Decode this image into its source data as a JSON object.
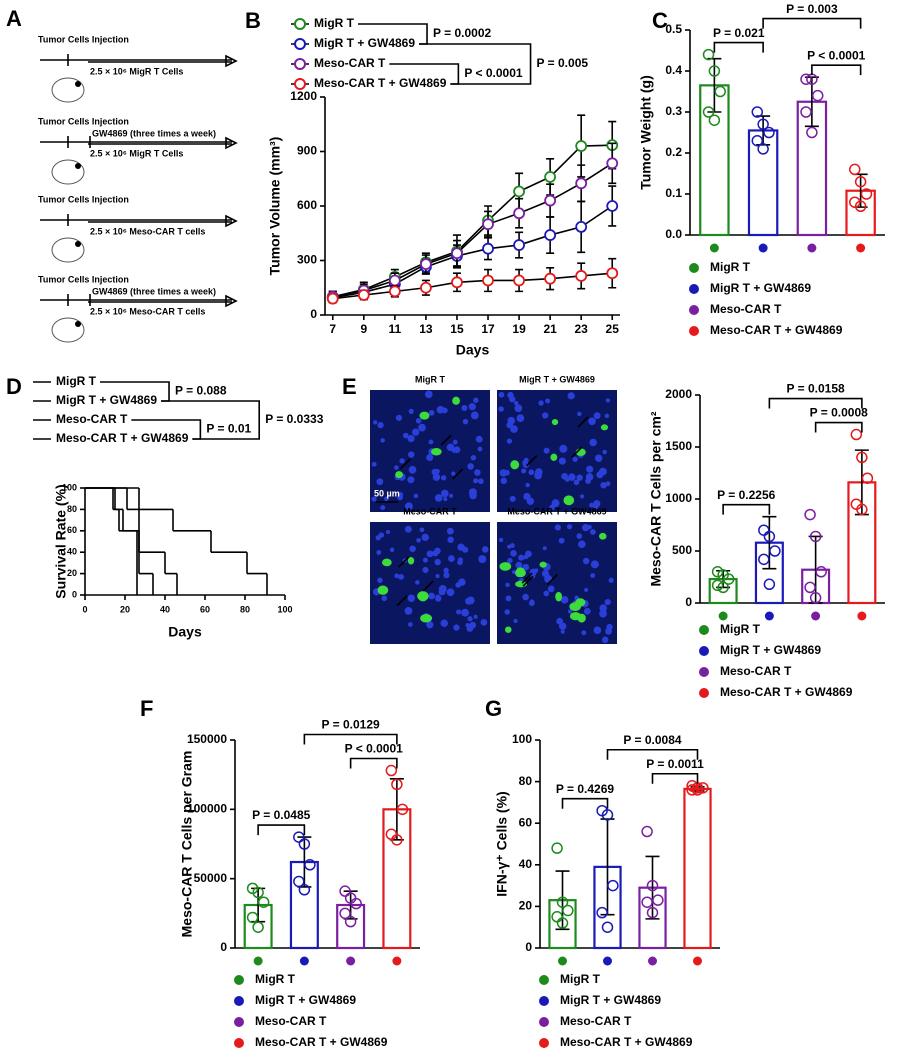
{
  "schematic": {
    "panel": "A",
    "rows": [
      {
        "injection": "Tumor Cells Injection",
        "cells": "2.5 × 10⁶ MigR T Cells"
      },
      {
        "injection": "Tumor Cells Injection",
        "treatment": "GW4869 (three times a week)",
        "cells": "2.5 × 10⁶ MigR T Cells"
      },
      {
        "injection": "Tumor Cells Injection",
        "cells": "2.5 × 10⁶ Meso-CAR T cells"
      },
      {
        "injection": "Tumor Cells Injection",
        "treatment": "GW4869 (three times a week)",
        "cells": "2.5 × 10⁶ Meso-CAR T cells"
      }
    ]
  },
  "micrographs": {
    "panels": [
      "MigR T",
      "MigR T + GW4869",
      "Meso-CAR T",
      "Meso-CAR T + GW4869"
    ],
    "scale_bar": "50 µm"
  },
  "chart_data": [
    {
      "type": "line",
      "panel": "B",
      "xlabel": "Days",
      "ylabel": "Tumor Volume (mm³)",
      "x": [
        7,
        9,
        11,
        13,
        15,
        17,
        19,
        21,
        23,
        25
      ],
      "xlim": [
        6.5,
        25.5
      ],
      "xticks": [
        7,
        9,
        11,
        13,
        15,
        17,
        19,
        21,
        23,
        25
      ],
      "ylim": [
        0,
        1200
      ],
      "yticks": [
        0,
        300,
        600,
        900,
        1200
      ],
      "series": [
        {
          "name": "MigR T",
          "color": "#1e8a1e",
          "values": [
            100,
            140,
            210,
            290,
            350,
            520,
            680,
            760,
            930,
            935
          ],
          "errors": [
            30,
            40,
            40,
            50,
            90,
            80,
            100,
            100,
            170,
            130
          ]
        },
        {
          "name": "MigR T + GW4869",
          "color": "#1a1ab8",
          "values": [
            95,
            125,
            170,
            265,
            325,
            365,
            385,
            440,
            485,
            600
          ],
          "errors": [
            25,
            30,
            40,
            40,
            60,
            60,
            70,
            100,
            140,
            110
          ]
        },
        {
          "name": "Meso-CAR T",
          "color": "#7b1fa2",
          "values": [
            100,
            135,
            190,
            280,
            340,
            500,
            560,
            630,
            725,
            835
          ],
          "errors": [
            30,
            35,
            40,
            50,
            70,
            70,
            80,
            90,
            100,
            110
          ]
        },
        {
          "name": "Meso-CAR T + GW4869",
          "color": "#e41a1c",
          "values": [
            90,
            110,
            130,
            150,
            180,
            190,
            190,
            200,
            215,
            230
          ],
          "errors": [
            20,
            25,
            30,
            40,
            50,
            60,
            60,
            60,
            70,
            80
          ]
        }
      ],
      "comparisons": [
        {
          "pair": [
            0,
            1
          ],
          "label": "P = 0.0002"
        },
        {
          "pair": [
            2,
            3
          ],
          "label": "P < 0.0001"
        },
        {
          "pair": [
            1,
            3
          ],
          "label": "P = 0.005"
        }
      ]
    },
    {
      "type": "bar",
      "panel": "C",
      "ylabel": "Tumor Weight (g)",
      "categories": [
        "MigR T",
        "MigR T + GW4869",
        "Meso-CAR T",
        "Meso-CAR T + GW4869"
      ],
      "colors": [
        "#1e8a1e",
        "#1a1ab8",
        "#7b1fa2",
        "#e41a1c"
      ],
      "values": [
        0.365,
        0.255,
        0.325,
        0.108
      ],
      "errors": [
        0.065,
        0.035,
        0.06,
        0.04
      ],
      "points": [
        [
          0.44,
          0.4,
          0.35,
          0.3,
          0.28
        ],
        [
          0.3,
          0.27,
          0.25,
          0.23,
          0.21
        ],
        [
          0.38,
          0.38,
          0.34,
          0.3,
          0.25
        ],
        [
          0.16,
          0.13,
          0.1,
          0.08,
          0.07
        ]
      ],
      "ylim": [
        0,
        0.5
      ],
      "yticks": [
        {
          "value": 0,
          "label": "0.0"
        },
        0.1,
        0.2,
        0.3,
        0.4,
        0.5
      ],
      "comparisons": [
        {
          "pair": [
            0,
            1
          ],
          "label": "P = 0.021"
        },
        {
          "pair": [
            1,
            3
          ],
          "label": "P = 0.003"
        },
        {
          "pair": [
            2,
            3
          ],
          "label": "P < 0.0001"
        }
      ]
    },
    {
      "type": "step",
      "panel": "D",
      "xlabel": "Days",
      "ylabel": "Survival Rate (%)",
      "xlim": [
        0,
        100
      ],
      "xticks": [
        0,
        20,
        40,
        60,
        80,
        100
      ],
      "ylim": [
        0,
        100
      ],
      "yticks": [
        0,
        20,
        40,
        60,
        80,
        100
      ],
      "series": [
        {
          "name": "MigR T",
          "color": "#1e8a1e",
          "x": [
            0,
            14,
            17,
            26
          ],
          "values": [
            100,
            80,
            60,
            0
          ]
        },
        {
          "name": "MigR T + GW4869",
          "color": "#1a1ab8",
          "x": [
            0,
            21,
            27,
            40,
            46
          ],
          "values": [
            100,
            80,
            40,
            20,
            0
          ]
        },
        {
          "name": "Meso-CAR T",
          "color": "#7b1fa2",
          "x": [
            0,
            15,
            19,
            27,
            34
          ],
          "values": [
            100,
            80,
            60,
            20,
            0
          ]
        },
        {
          "name": "Meso-CAR T + GW4869",
          "color": "#e41a1c",
          "x": [
            0,
            27,
            44,
            63,
            81,
            91
          ],
          "values": [
            100,
            80,
            60,
            40,
            20,
            0
          ]
        }
      ],
      "comparisons": [
        {
          "pair": [
            0,
            1
          ],
          "label": "P = 0.088"
        },
        {
          "pair": [
            2,
            3
          ],
          "label": "P = 0.01"
        },
        {
          "pair": [
            1,
            3
          ],
          "label": "P = 0.0333"
        }
      ]
    },
    {
      "type": "bar",
      "panel": "E",
      "ylabel": "Meso-CAR T Cells per cm²",
      "categories": [
        "MigR T",
        "MigR T + GW4869",
        "Meso-CAR T",
        "Meso-CAR T + GW4869"
      ],
      "colors": [
        "#1e8a1e",
        "#1a1ab8",
        "#7b1fa2",
        "#e41a1c"
      ],
      "values": [
        230,
        580,
        320,
        1160
      ],
      "errors": [
        80,
        250,
        320,
        310
      ],
      "points": [
        [
          300,
          270,
          230,
          170,
          150
        ],
        [
          700,
          640,
          500,
          420,
          180
        ],
        [
          850,
          640,
          300,
          150,
          50
        ],
        [
          1620,
          1400,
          1200,
          950,
          900
        ]
      ],
      "ylim": [
        0,
        2000
      ],
      "yticks": [
        0,
        500,
        1000,
        1500,
        2000
      ],
      "comparisons": [
        {
          "pair": [
            0,
            1
          ],
          "label": "P = 0.2256"
        },
        {
          "pair": [
            1,
            3
          ],
          "label": "P = 0.0158"
        },
        {
          "pair": [
            2,
            3
          ],
          "label": "P = 0.0008"
        }
      ]
    },
    {
      "type": "bar",
      "panel": "F",
      "ylabel": "Meso-CAR T Cells per Gram",
      "categories": [
        "MigR T",
        "MigR T + GW4869",
        "Meso-CAR T",
        "Meso-CAR T + GW4869"
      ],
      "colors": [
        "#1e8a1e",
        "#1a1ab8",
        "#7b1fa2",
        "#e41a1c"
      ],
      "values": [
        31000,
        62000,
        31000,
        100000
      ],
      "errors": [
        12000,
        18000,
        10000,
        22000
      ],
      "points": [
        [
          43000,
          40000,
          33000,
          22000,
          15000
        ],
        [
          80000,
          75000,
          60000,
          48000,
          42000
        ],
        [
          41000,
          36000,
          32000,
          25000,
          19000
        ],
        [
          128000,
          118000,
          100000,
          82000,
          78000
        ]
      ],
      "ylim": [
        0,
        150000
      ],
      "yticks": [
        0,
        50000,
        100000,
        150000
      ],
      "comparisons": [
        {
          "pair": [
            0,
            1
          ],
          "label": "P = 0.0485"
        },
        {
          "pair": [
            1,
            3
          ],
          "label": "P = 0.0129"
        },
        {
          "pair": [
            2,
            3
          ],
          "label": "P < 0.0001"
        }
      ]
    },
    {
      "type": "bar",
      "panel": "G",
      "ylabel": "IFN-γ⁺ Cells (%)",
      "categories": [
        "MigR T",
        "MigR T + GW4869",
        "Meso-CAR T",
        "Meso-CAR T + GW4869"
      ],
      "colors": [
        "#1e8a1e",
        "#1a1ab8",
        "#7b1fa2",
        "#e41a1c"
      ],
      "values": [
        23,
        39,
        29,
        76.5
      ],
      "errors": [
        14,
        23,
        15,
        1
      ],
      "points": [
        [
          48,
          22,
          18,
          15,
          12
        ],
        [
          66,
          64,
          30,
          17,
          10
        ],
        [
          56,
          30,
          23,
          22,
          17
        ],
        [
          78,
          77,
          77,
          76,
          76
        ]
      ],
      "ylim": [
        0,
        100
      ],
      "yticks": [
        0,
        20,
        40,
        60,
        80,
        100
      ],
      "comparisons": [
        {
          "pair": [
            0,
            1
          ],
          "label": "P = 0.4269"
        },
        {
          "pair": [
            1,
            3
          ],
          "label": "P = 0.0084"
        },
        {
          "pair": [
            2,
            3
          ],
          "label": "P = 0.0011"
        }
      ]
    }
  ]
}
